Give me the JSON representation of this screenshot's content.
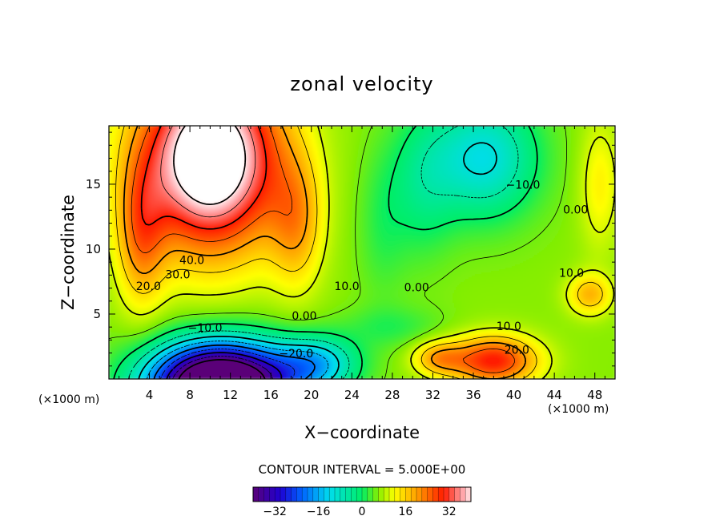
{
  "chart_data": {
    "type": "heatmap",
    "title": "zonal velocity",
    "xlabel": "X−coordinate",
    "ylabel": "Z−coordinate",
    "x_unit": "(×1000 m)",
    "x_unit_right": "(×1000 m)",
    "xlim": [
      0,
      50
    ],
    "ylim": [
      0,
      19.5
    ],
    "x_ticks": [
      "4",
      "8",
      "12",
      "16",
      "20",
      "24",
      "28",
      "32",
      "36",
      "40",
      "44",
      "48"
    ],
    "x_tick_values": [
      4,
      8,
      12,
      16,
      20,
      24,
      28,
      32,
      36,
      40,
      44,
      48
    ],
    "y_ticks": [
      "5",
      "10",
      "15"
    ],
    "y_tick_values": [
      5,
      10,
      15
    ],
    "contour_interval_text": "CONTOUR INTERVAL = 5.000E+00",
    "contour_labels": [
      {
        "text": "40.0",
        "x": 8.2,
        "z": 9.1
      },
      {
        "text": "30.0",
        "x": 6.8,
        "z": 8.0
      },
      {
        "text": "20.0",
        "x": 3.9,
        "z": 7.1
      },
      {
        "text": "10.0",
        "x": 23.5,
        "z": 7.1
      },
      {
        "text": "0.00",
        "x": 19.3,
        "z": 4.8
      },
      {
        "text": "−10.0",
        "x": 9.5,
        "z": 3.9
      },
      {
        "text": "−20.0",
        "x": 18.5,
        "z": 1.9
      },
      {
        "text": "0.00",
        "x": 30.4,
        "z": 7.0
      },
      {
        "text": "10.0",
        "x": 39.5,
        "z": 4.0
      },
      {
        "text": "20.0",
        "x": 40.3,
        "z": 2.2
      },
      {
        "text": "10.0",
        "x": 45.7,
        "z": 8.1
      },
      {
        "text": "−10.0",
        "x": 40.9,
        "z": 14.9
      },
      {
        "text": "0.00",
        "x": 46.1,
        "z": 13.0
      }
    ],
    "colorbar": {
      "min": -40,
      "max": 40,
      "ticks": [
        "−32",
        "−16",
        "0",
        "16",
        "32"
      ],
      "tick_values": [
        -32,
        -16,
        0,
        16,
        32
      ]
    },
    "colormap": [
      "#5a0078",
      "#1e00d2",
      "#0064ff",
      "#00ddee",
      "#00ee66",
      "#88ee00",
      "#ffff00",
      "#ff8800",
      "#ff1a00",
      "#ffa6aa",
      "#ffffff"
    ]
  }
}
